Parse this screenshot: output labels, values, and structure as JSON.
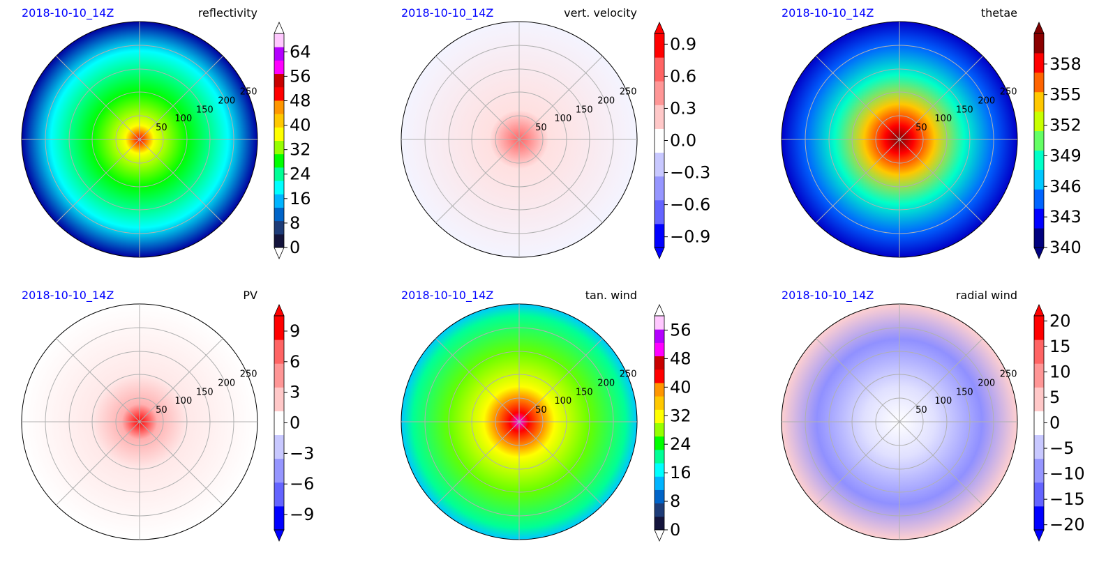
{
  "chart_data": [
    {
      "type": "heatmap",
      "projection": "polar",
      "time_label": "2018-10-10_14Z",
      "title": "reflectivity",
      "ring_labels": [
        "50",
        "100",
        "150",
        "200",
        "250"
      ],
      "colorbar": {
        "ticks": [
          "0",
          "8",
          "16",
          "24",
          "32",
          "40",
          "48",
          "56",
          "64"
        ],
        "range": [
          0,
          70
        ],
        "extend": "both",
        "colormap": "reflectivity"
      }
    },
    {
      "type": "heatmap",
      "projection": "polar",
      "time_label": "2018-10-10_14Z",
      "title": "vert. velocity",
      "ring_labels": [
        "50",
        "100",
        "150",
        "200",
        "250"
      ],
      "colorbar": {
        "ticks": [
          "−0.9",
          "−0.6",
          "−0.3",
          "0.0",
          "0.3",
          "0.6",
          "0.9"
        ],
        "range": [
          -1.0,
          1.0
        ],
        "extend": "both",
        "colormap": "bwr"
      }
    },
    {
      "type": "heatmap",
      "projection": "polar",
      "time_label": "2018-10-10_14Z",
      "title": "thetae",
      "ring_labels": [
        "50",
        "100",
        "150",
        "200",
        "250"
      ],
      "colorbar": {
        "ticks": [
          "340",
          "343",
          "346",
          "349",
          "352",
          "355",
          "358"
        ],
        "range": [
          340,
          361
        ],
        "extend": "both",
        "colormap": "jet"
      }
    },
    {
      "type": "heatmap",
      "projection": "polar",
      "time_label": "2018-10-10_14Z",
      "title": "PV",
      "ring_labels": [
        "50",
        "100",
        "150",
        "200",
        "250"
      ],
      "colorbar": {
        "ticks": [
          "−9",
          "−6",
          "−3",
          "0",
          "3",
          "6",
          "9"
        ],
        "range": [
          -10.5,
          10.5
        ],
        "extend": "both",
        "colormap": "bwr"
      }
    },
    {
      "type": "heatmap",
      "projection": "polar",
      "time_label": "2018-10-10_14Z",
      "title": "tan. wind",
      "ring_labels": [
        "50",
        "100",
        "150",
        "200",
        "250"
      ],
      "colorbar": {
        "ticks": [
          "0",
          "8",
          "16",
          "24",
          "32",
          "40",
          "48",
          "56"
        ],
        "range": [
          0,
          60
        ],
        "extend": "both",
        "colormap": "reflectivity"
      }
    },
    {
      "type": "heatmap",
      "projection": "polar",
      "time_label": "2018-10-10_14Z",
      "title": "radial wind",
      "ring_labels": [
        "50",
        "100",
        "150",
        "200",
        "250"
      ],
      "colorbar": {
        "ticks": [
          "−20",
          "−15",
          "−10",
          "−5",
          "0",
          "5",
          "10",
          "15",
          "20"
        ],
        "range": [
          -21,
          21
        ],
        "extend": "both",
        "colormap": "bwr"
      }
    }
  ],
  "colors": {
    "time_label": "#0000ff",
    "grid": "#b0b0b0",
    "map_bg": "#ffffff"
  }
}
